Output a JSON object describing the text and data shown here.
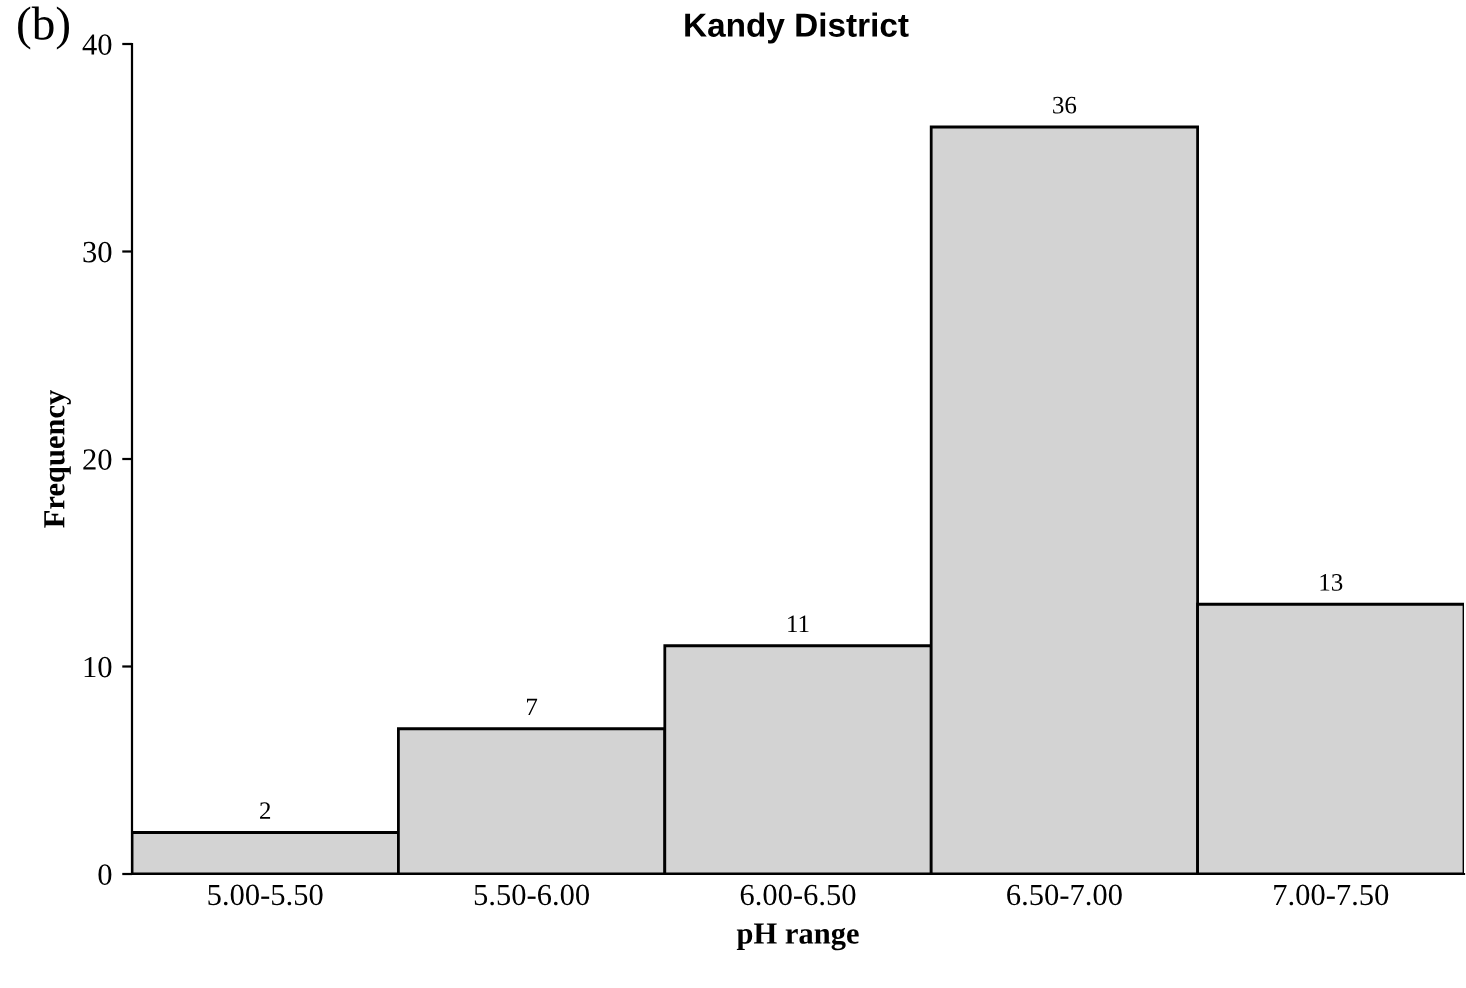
{
  "chart_data": {
    "type": "bar",
    "title": "Kandy District",
    "xlabel": "pH range",
    "ylabel": "Frequency",
    "annotations": [
      "(b)"
    ],
    "categories": [
      "5.00-5.50",
      "5.50-6.00",
      "6.00-6.50",
      "6.50-7.00",
      "7.00-7.50"
    ],
    "values": [
      2,
      7,
      11,
      36,
      13
    ],
    "color": "#d3d3d3",
    "ylim": [
      0,
      40
    ],
    "yticks": [
      0,
      10,
      20,
      30,
      40
    ],
    "grid": false,
    "data_labels": true
  }
}
